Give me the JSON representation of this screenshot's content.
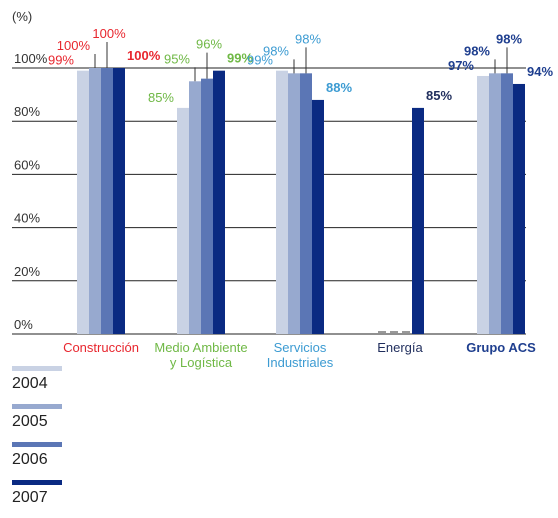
{
  "chart_data": {
    "type": "bar",
    "unit_label": "(%)",
    "y_ticks": [
      "0%",
      "20%",
      "40%",
      "60%",
      "80%",
      "100%"
    ],
    "ylim": [
      0,
      100
    ],
    "categories": [
      {
        "lines": [
          "Construcción"
        ],
        "color": "#e8262e",
        "bold": false
      },
      {
        "lines": [
          "Medio Ambiente",
          "y Logística"
        ],
        "color": "#6fb845",
        "bold": false
      },
      {
        "lines": [
          "Servicios",
          "Industriales"
        ],
        "color": "#3c9bd2",
        "bold": false
      },
      {
        "lines": [
          "Energía"
        ],
        "color": "#1f2d5c",
        "bold": false
      },
      {
        "lines": [
          "Grupo ACS"
        ],
        "color": "#1f3f8f",
        "bold": true
      }
    ],
    "series": [
      {
        "name": "2004",
        "color": "#c9d2e4",
        "values": [
          99,
          85,
          99,
          null,
          97
        ],
        "labels": [
          "99%",
          "85%",
          "99%",
          "",
          "97%"
        ]
      },
      {
        "name": "2005",
        "color": "#97a9cf",
        "values": [
          100,
          95,
          98,
          null,
          98
        ],
        "labels": [
          "100%",
          "95%",
          "98%",
          "",
          "98%"
        ]
      },
      {
        "name": "2006",
        "color": "#5b76b5",
        "values": [
          100,
          96,
          98,
          null,
          98
        ],
        "labels": [
          "100%",
          "96%",
          "98%",
          "",
          "98%"
        ]
      },
      {
        "name": "2007",
        "color": "#0a2a82",
        "values": [
          100,
          99,
          88,
          85,
          94
        ],
        "labels": [
          "100%",
          "99%",
          "88%",
          "85%",
          "94%"
        ]
      }
    ]
  }
}
